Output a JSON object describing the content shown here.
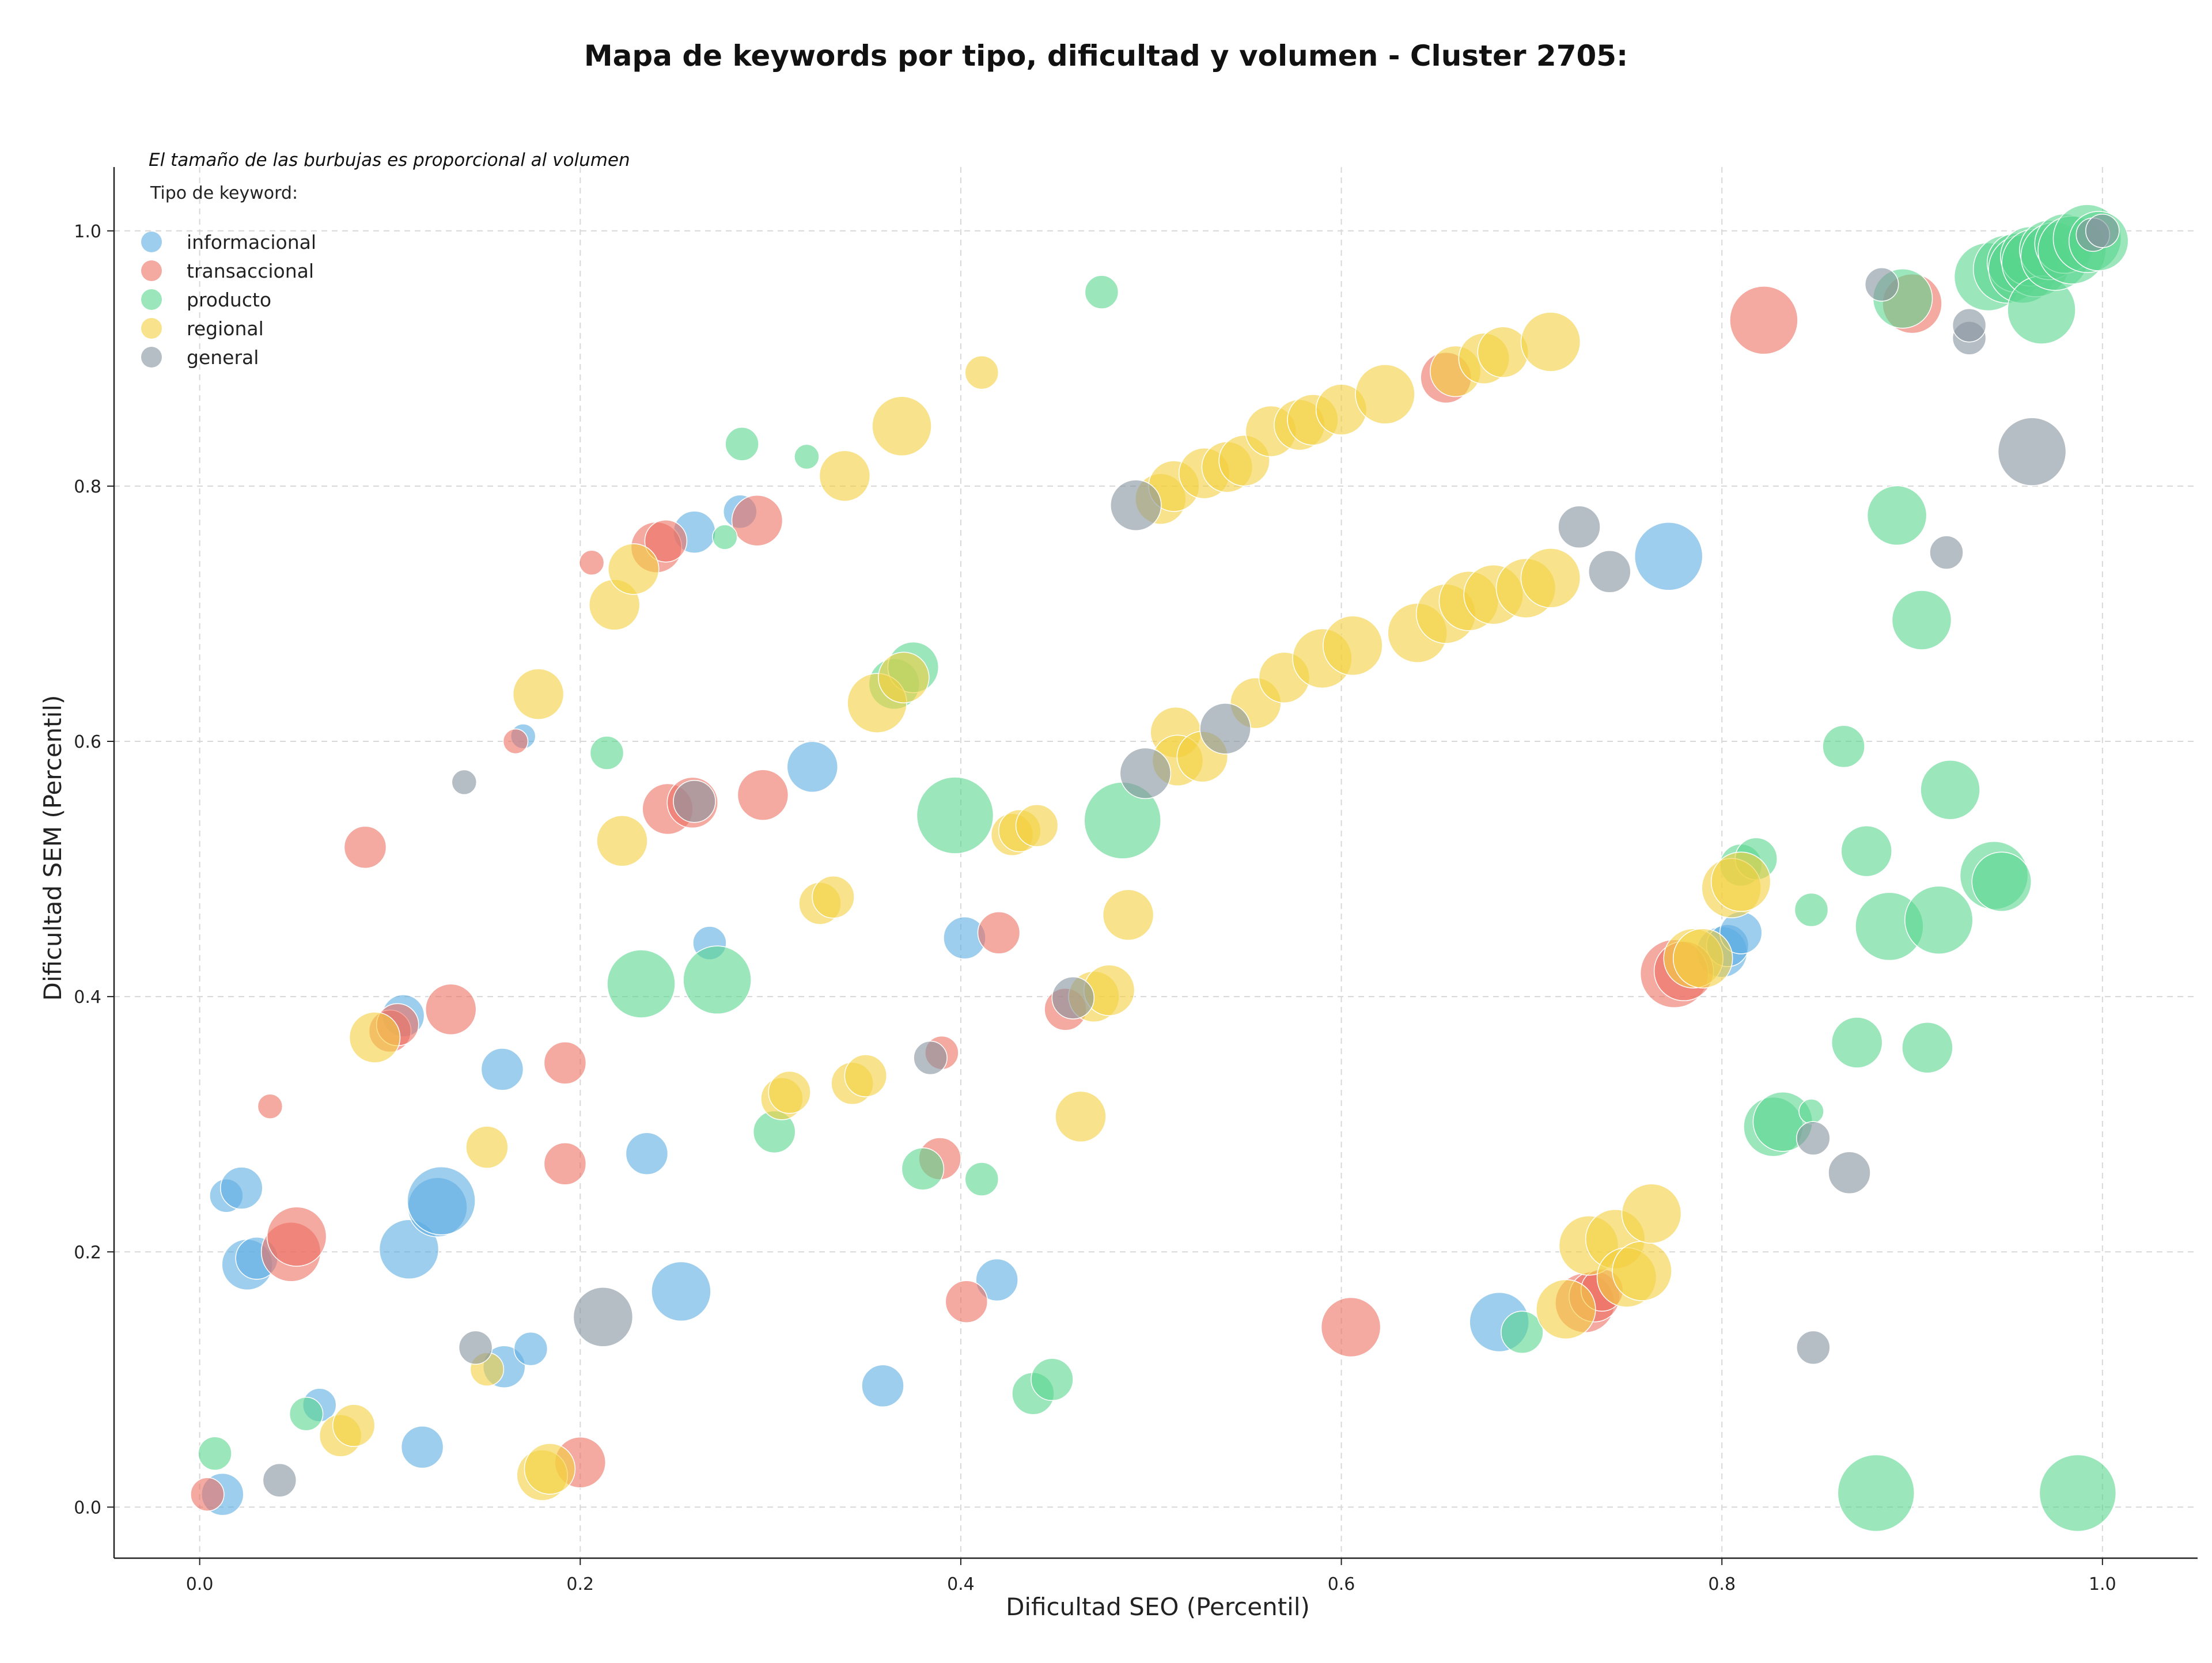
{
  "chart_data": {
    "type": "scatter",
    "title": "Mapa de keywords por tipo, dificultad y volumen - Cluster 2705:",
    "xlabel": "Dificultad SEO (Percentil)",
    "ylabel": "Dificultad SEM (Percentil)",
    "xlim": [
      -0.045,
      1.05
    ],
    "ylim": [
      -0.04,
      1.05
    ],
    "x_ticks": [
      "0.0",
      "0.2",
      "0.4",
      "0.6",
      "0.8",
      "1.0"
    ],
    "y_ticks": [
      "0.0",
      "0.2",
      "0.4",
      "0.6",
      "0.8",
      "1.0"
    ],
    "grid": true,
    "legend_position": "top-left",
    "annotation": "El tamaño de las burbujas es proporcional al volumen",
    "legend_title": "Tipo de keyword:",
    "series": [
      {
        "name": "informacional",
        "color": "#5dade2",
        "points": [
          [
            0.014,
            0.244,
            2
          ],
          [
            0.022,
            0.25,
            3
          ],
          [
            0.025,
            0.19,
            4
          ],
          [
            0.03,
            0.195,
            3
          ],
          [
            0.012,
            0.01,
            3
          ],
          [
            0.063,
            0.08,
            2
          ],
          [
            0.107,
            0.385,
            3
          ],
          [
            0.11,
            0.202,
            5
          ],
          [
            0.117,
            0.047,
            3
          ],
          [
            0.125,
            0.235,
            5
          ],
          [
            0.127,
            0.24,
            6
          ],
          [
            0.159,
            0.343,
            3
          ],
          [
            0.16,
            0.11,
            3
          ],
          [
            0.17,
            0.604,
            1
          ],
          [
            0.174,
            0.124,
            2
          ],
          [
            0.235,
            0.277,
            3
          ],
          [
            0.253,
            0.169,
            5
          ],
          [
            0.26,
            0.764,
            3
          ],
          [
            0.268,
            0.442,
            2
          ],
          [
            0.284,
            0.78,
            2
          ],
          [
            0.322,
            0.58,
            4
          ],
          [
            0.359,
            0.095,
            3
          ],
          [
            0.402,
            0.446,
            3
          ],
          [
            0.419,
            0.178,
            3
          ],
          [
            0.683,
            0.145,
            5
          ],
          [
            0.772,
            0.745,
            6
          ],
          [
            0.8,
            0.435,
            4
          ],
          [
            0.803,
            0.44,
            3
          ],
          [
            0.81,
            0.45,
            3
          ]
        ]
      },
      {
        "name": "transaccional",
        "color": "#ec7063",
        "points": [
          [
            0.004,
            0.01,
            2
          ],
          [
            0.037,
            0.314,
            1
          ],
          [
            0.048,
            0.2,
            5
          ],
          [
            0.051,
            0.212,
            5
          ],
          [
            0.087,
            0.517,
            3
          ],
          [
            0.1,
            0.373,
            3
          ],
          [
            0.104,
            0.378,
            3
          ],
          [
            0.132,
            0.39,
            4
          ],
          [
            0.166,
            0.6,
            1
          ],
          [
            0.192,
            0.348,
            3
          ],
          [
            0.192,
            0.269,
            3
          ],
          [
            0.2,
            0.035,
            4
          ],
          [
            0.206,
            0.74,
            1
          ],
          [
            0.24,
            0.752,
            4
          ],
          [
            0.245,
            0.757,
            3
          ],
          [
            0.246,
            0.547,
            4
          ],
          [
            0.259,
            0.552,
            4
          ],
          [
            0.293,
            0.773,
            4
          ],
          [
            0.296,
            0.558,
            4
          ],
          [
            0.39,
            0.356,
            2
          ],
          [
            0.389,
            0.273,
            3
          ],
          [
            0.403,
            0.161,
            3
          ],
          [
            0.42,
            0.45,
            3
          ],
          [
            0.455,
            0.39,
            3
          ],
          [
            0.605,
            0.141,
            5
          ],
          [
            0.655,
            0.885,
            4
          ],
          [
            0.728,
            0.16,
            5
          ],
          [
            0.733,
            0.165,
            4
          ],
          [
            0.737,
            0.17,
            3
          ],
          [
            0.775,
            0.418,
            6
          ],
          [
            0.78,
            0.42,
            5
          ],
          [
            0.822,
            0.93,
            6
          ],
          [
            0.9,
            0.943,
            5
          ]
        ]
      },
      {
        "name": "producto",
        "color": "#58d68d",
        "points": [
          [
            0.008,
            0.042,
            2
          ],
          [
            0.056,
            0.073,
            2
          ],
          [
            0.232,
            0.41,
            6
          ],
          [
            0.214,
            0.591,
            2
          ],
          [
            0.272,
            0.413,
            6
          ],
          [
            0.276,
            0.76,
            1
          ],
          [
            0.285,
            0.833,
            2
          ],
          [
            0.302,
            0.294,
            3
          ],
          [
            0.319,
            0.823,
            1
          ],
          [
            0.365,
            0.645,
            4
          ],
          [
            0.375,
            0.658,
            4
          ],
          [
            0.38,
            0.265,
            3
          ],
          [
            0.397,
            0.542,
            7
          ],
          [
            0.411,
            0.257,
            2
          ],
          [
            0.438,
            0.089,
            3
          ],
          [
            0.448,
            0.1,
            3
          ],
          [
            0.474,
            0.952,
            2
          ],
          [
            0.485,
            0.538,
            7
          ],
          [
            0.695,
            0.137,
            3
          ],
          [
            0.81,
            0.503,
            3
          ],
          [
            0.818,
            0.508,
            3
          ],
          [
            0.827,
            0.298,
            5
          ],
          [
            0.832,
            0.302,
            5
          ],
          [
            0.847,
            0.468,
            2
          ],
          [
            0.847,
            0.31,
            1
          ],
          [
            0.864,
            0.596,
            3
          ],
          [
            0.871,
            0.364,
            4
          ],
          [
            0.876,
            0.514,
            4
          ],
          [
            0.881,
            0.011,
            7
          ],
          [
            0.888,
            0.455,
            6
          ],
          [
            0.892,
            0.777,
            5
          ],
          [
            0.895,
            0.947,
            5
          ],
          [
            0.905,
            0.695,
            5
          ],
          [
            0.908,
            0.36,
            4
          ],
          [
            0.914,
            0.46,
            6
          ],
          [
            0.92,
            0.562,
            5
          ],
          [
            0.94,
            0.964,
            6
          ],
          [
            0.943,
            0.495,
            6
          ],
          [
            0.947,
            0.49,
            5
          ],
          [
            0.95,
            0.97,
            6
          ],
          [
            0.955,
            0.975,
            5
          ],
          [
            0.958,
            0.97,
            6
          ],
          [
            0.962,
            0.98,
            5
          ],
          [
            0.965,
            0.975,
            6
          ],
          [
            0.968,
            0.938,
            6
          ],
          [
            0.972,
            0.985,
            5
          ],
          [
            0.975,
            0.98,
            6
          ],
          [
            0.98,
            0.99,
            5
          ],
          [
            0.984,
            0.985,
            6
          ],
          [
            0.987,
            0.011,
            7
          ],
          [
            0.992,
            0.994,
            6
          ],
          [
            0.998,
            0.992,
            5
          ]
        ]
      },
      {
        "name": "regional",
        "color": "#f4d03f",
        "points": [
          [
            0.074,
            0.056,
            3
          ],
          [
            0.081,
            0.064,
            3
          ],
          [
            0.092,
            0.368,
            4
          ],
          [
            0.151,
            0.108,
            2
          ],
          [
            0.151,
            0.282,
            3
          ],
          [
            0.178,
            0.637,
            4
          ],
          [
            0.18,
            0.025,
            4
          ],
          [
            0.184,
            0.03,
            4
          ],
          [
            0.218,
            0.707,
            4
          ],
          [
            0.222,
            0.522,
            4
          ],
          [
            0.228,
            0.735,
            4
          ],
          [
            0.306,
            0.32,
            3
          ],
          [
            0.31,
            0.325,
            3
          ],
          [
            0.326,
            0.473,
            3
          ],
          [
            0.333,
            0.478,
            3
          ],
          [
            0.339,
            0.808,
            4
          ],
          [
            0.343,
            0.332,
            3
          ],
          [
            0.35,
            0.338,
            3
          ],
          [
            0.356,
            0.63,
            5
          ],
          [
            0.37,
            0.65,
            4
          ],
          [
            0.369,
            0.847,
            5
          ],
          [
            0.411,
            0.889,
            2
          ],
          [
            0.427,
            0.527,
            3
          ],
          [
            0.431,
            0.53,
            3
          ],
          [
            0.44,
            0.534,
            3
          ],
          [
            0.463,
            0.306,
            4
          ],
          [
            0.47,
            0.4,
            4
          ],
          [
            0.478,
            0.405,
            4
          ],
          [
            0.488,
            0.464,
            4
          ],
          [
            0.505,
            0.79,
            4
          ],
          [
            0.512,
            0.8,
            4
          ],
          [
            0.513,
            0.607,
            4
          ],
          [
            0.514,
            0.585,
            4
          ],
          [
            0.527,
            0.588,
            4
          ],
          [
            0.528,
            0.81,
            4
          ],
          [
            0.54,
            0.815,
            4
          ],
          [
            0.549,
            0.82,
            4
          ],
          [
            0.555,
            0.63,
            4
          ],
          [
            0.563,
            0.843,
            4
          ],
          [
            0.57,
            0.65,
            4
          ],
          [
            0.578,
            0.848,
            4
          ],
          [
            0.585,
            0.852,
            4
          ],
          [
            0.59,
            0.665,
            5
          ],
          [
            0.6,
            0.86,
            4
          ],
          [
            0.606,
            0.675,
            5
          ],
          [
            0.623,
            0.872,
            5
          ],
          [
            0.64,
            0.685,
            5
          ],
          [
            0.655,
            0.7,
            5
          ],
          [
            0.66,
            0.89,
            4
          ],
          [
            0.667,
            0.71,
            5
          ],
          [
            0.675,
            0.9,
            4
          ],
          [
            0.68,
            0.715,
            5
          ],
          [
            0.685,
            0.905,
            4
          ],
          [
            0.697,
            0.72,
            5
          ],
          [
            0.71,
            0.728,
            5
          ],
          [
            0.71,
            0.913,
            5
          ],
          [
            0.718,
            0.155,
            5
          ],
          [
            0.73,
            0.205,
            5
          ],
          [
            0.744,
            0.21,
            5
          ],
          [
            0.75,
            0.18,
            5
          ],
          [
            0.758,
            0.185,
            5
          ],
          [
            0.763,
            0.23,
            5
          ],
          [
            0.785,
            0.43,
            5
          ],
          [
            0.79,
            0.43,
            5
          ],
          [
            0.805,
            0.485,
            5
          ],
          [
            0.81,
            0.49,
            5
          ]
        ]
      },
      {
        "name": "general",
        "color": "#85929e",
        "points": [
          [
            0.042,
            0.021,
            2
          ],
          [
            0.139,
            0.568,
            1
          ],
          [
            0.145,
            0.125,
            2
          ],
          [
            0.212,
            0.149,
            5
          ],
          [
            0.26,
            0.553,
            3
          ],
          [
            0.384,
            0.352,
            2
          ],
          [
            0.459,
            0.399,
            3
          ],
          [
            0.492,
            0.785,
            4
          ],
          [
            0.497,
            0.575,
            4
          ],
          [
            0.539,
            0.61,
            4
          ],
          [
            0.725,
            0.768,
            3
          ],
          [
            0.741,
            0.733,
            3
          ],
          [
            0.848,
            0.289,
            2
          ],
          [
            0.848,
            0.125,
            2
          ],
          [
            0.867,
            0.262,
            3
          ],
          [
            0.884,
            0.958,
            2
          ],
          [
            0.93,
            0.916,
            2
          ],
          [
            0.93,
            0.926,
            2
          ],
          [
            0.918,
            0.748,
            2
          ],
          [
            0.963,
            0.827,
            6
          ],
          [
            0.995,
            0.997,
            2
          ],
          [
            1.0,
            1.0,
            2
          ]
        ]
      }
    ]
  }
}
